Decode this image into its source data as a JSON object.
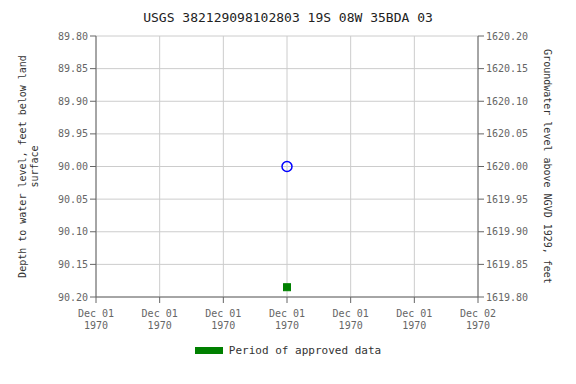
{
  "chart_data": {
    "type": "scatter",
    "title": "USGS 382129098102803 19S 08W 35BDA 03",
    "categories": [
      "Dec 01\n1970",
      "Dec 01\n1970",
      "Dec 01\n1970",
      "Dec 01\n1970",
      "Dec 01\n1970",
      "Dec 01\n1970",
      "Dec 02\n1970"
    ],
    "ylabel": "Depth to water level, feet below land\nsurface",
    "y2label": "Groundwater level above NGVD 1929, feet",
    "ylim": [
      90.2,
      89.8
    ],
    "yticks": [
      {
        "value": 89.8,
        "label": "89.80"
      },
      89.85,
      {
        "value": 89.9,
        "label": "89.90"
      },
      89.95,
      {
        "value": 90.0,
        "label": "90.00"
      },
      90.05,
      {
        "value": 90.1,
        "label": "90.10"
      },
      90.15,
      {
        "value": 90.2,
        "label": "90.20"
      }
    ],
    "y2lim": [
      1619.8,
      1620.2
    ],
    "y2ticks": [
      {
        "value": 1620.2,
        "label": "1620.20"
      },
      1620.15,
      {
        "value": 1620.1,
        "label": "1620.10"
      },
      1620.05,
      {
        "value": 1620.0,
        "label": "1620.00"
      },
      1619.95,
      {
        "value": 1619.9,
        "label": "1619.90"
      },
      1619.85,
      {
        "value": 1619.8,
        "label": "1619.80"
      }
    ],
    "series": [
      {
        "values": [
          null,
          null,
          null,
          90.0,
          null,
          null,
          null
        ],
        "color": "#0000ff",
        "marker": "circle"
      },
      {
        "name": "Period of approved data",
        "values": [
          null,
          null,
          null,
          90.185,
          null,
          null,
          null
        ],
        "color": "#008000",
        "marker": "square"
      }
    ],
    "grid": true,
    "legend": "bottom"
  }
}
